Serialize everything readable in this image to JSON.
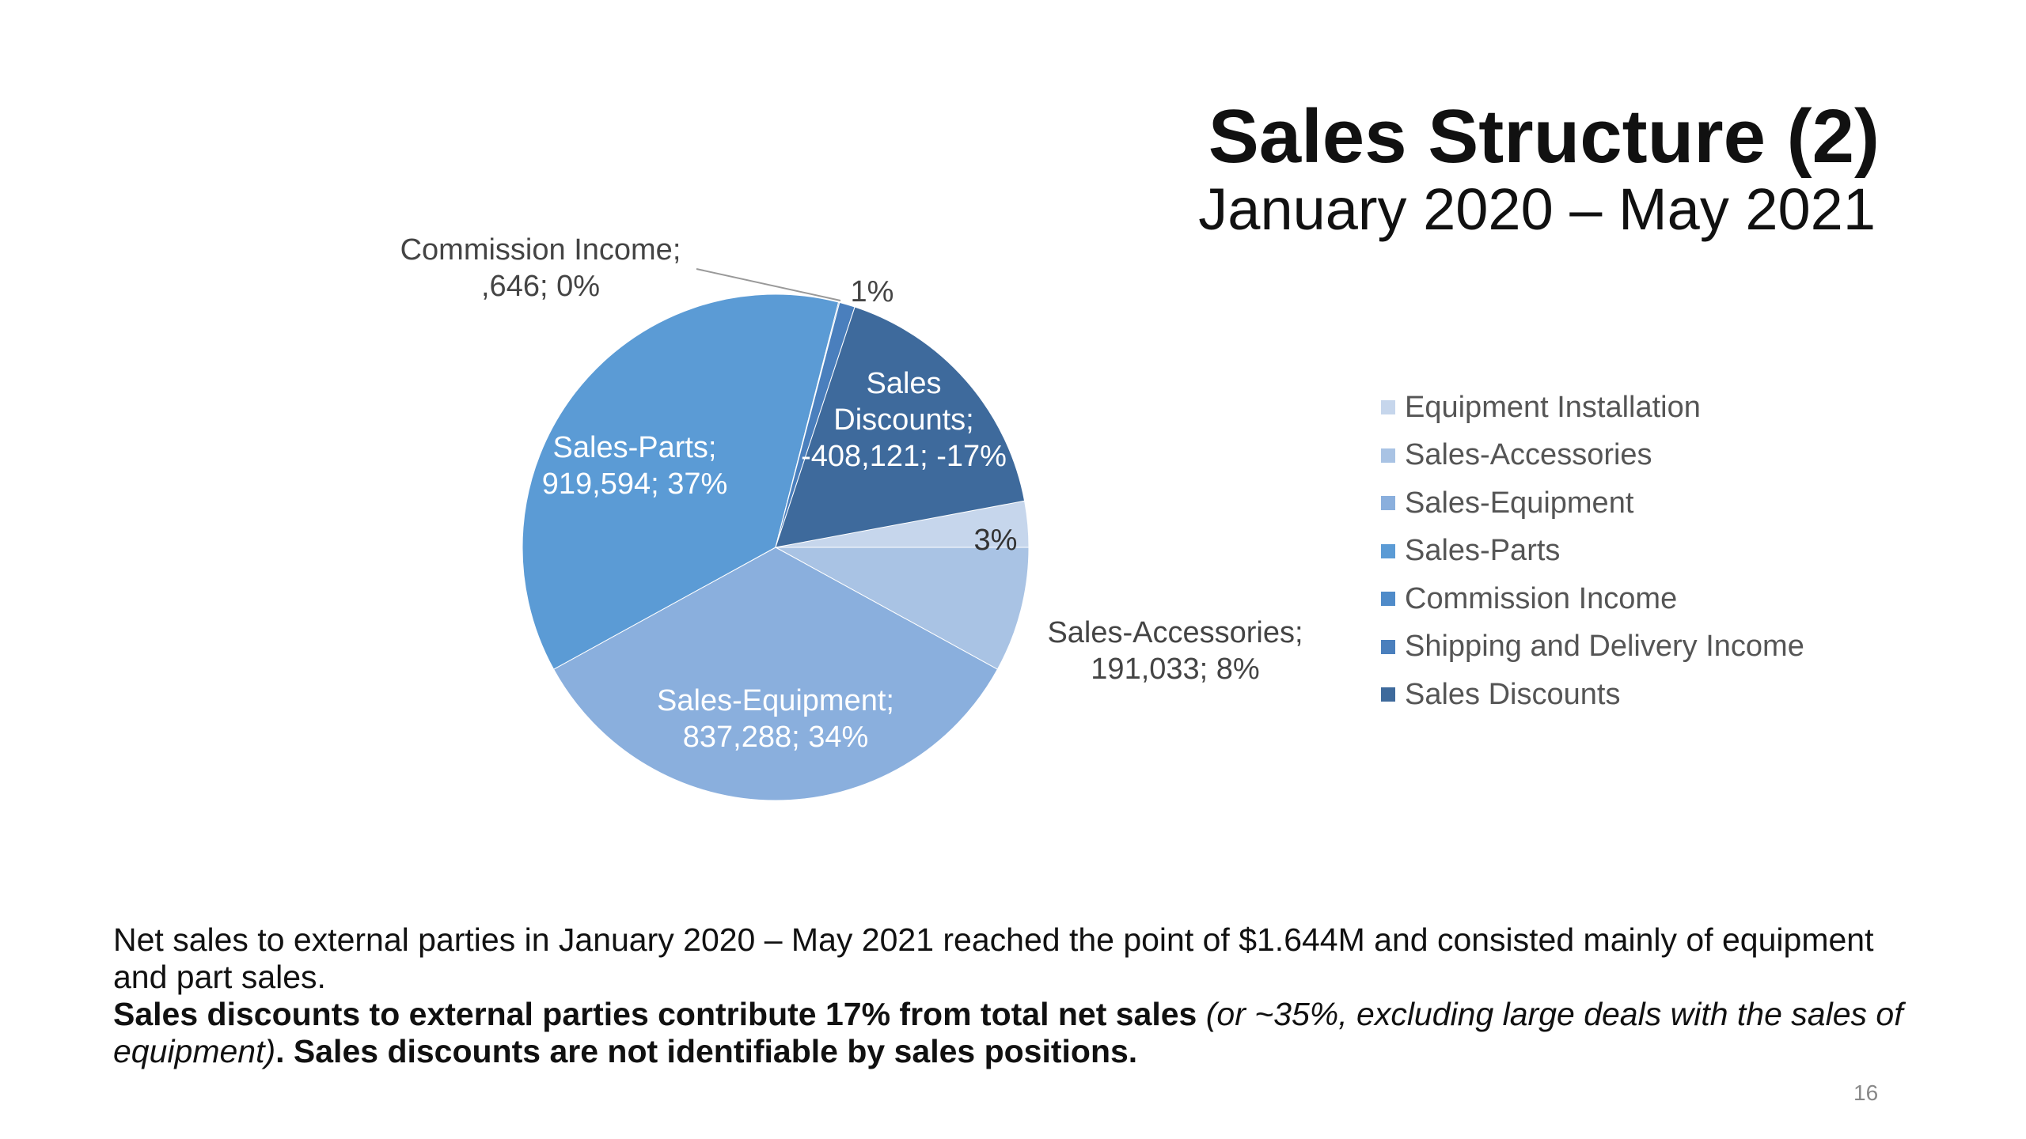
{
  "title": "Sales Structure (2)",
  "subtitle": "January 2020 – May 2021",
  "chart_data": {
    "type": "pie",
    "categories": [
      "Equipment Installation",
      "Sales-Accessories",
      "Sales-Equipment",
      "Sales-Parts",
      "Commission Income",
      "Shipping and Delivery Income",
      "Sales Discounts"
    ],
    "values": [
      null,
      191033,
      837288,
      919594,
      646,
      null,
      -408121
    ],
    "percents": [
      3,
      8,
      34,
      37,
      0,
      1,
      -17
    ],
    "colors": [
      "#c6d6ec",
      "#a9c3e4",
      "#8aafdd",
      "#5b9bd5",
      "#4f8bc9",
      "#4a7fbd",
      "#3e6a9c"
    ],
    "data_labels": [
      {
        "lines": [
          "3%"
        ]
      },
      {
        "lines": [
          "Sales-Accessories;",
          "191,033; 8%"
        ]
      },
      {
        "lines": [
          "Sales-Equipment;",
          "837,288; 34%"
        ]
      },
      {
        "lines": [
          "Sales-Parts;",
          "919,594; 37%"
        ]
      },
      {
        "lines": [
          "Commission Income;",
          ",646; 0%"
        ]
      },
      {
        "lines": [
          "1%"
        ]
      },
      {
        "lines": [
          "Sales",
          "Discounts;",
          "-408,121; -17%"
        ]
      }
    ],
    "legend_position": "right"
  },
  "body": {
    "line1": "Net sales to external parties in January 2020 – May 2021 reached the point of $1.644M and consisted mainly of equipment and part sales.",
    "bold1": "Sales discounts to external parties contribute 17% from total net sales",
    "italic1": " (or ~35%, excluding large deals with the sales of equipment)",
    "bold2": ". Sales discounts are not identifiable by sales positions."
  },
  "page_number": "16"
}
